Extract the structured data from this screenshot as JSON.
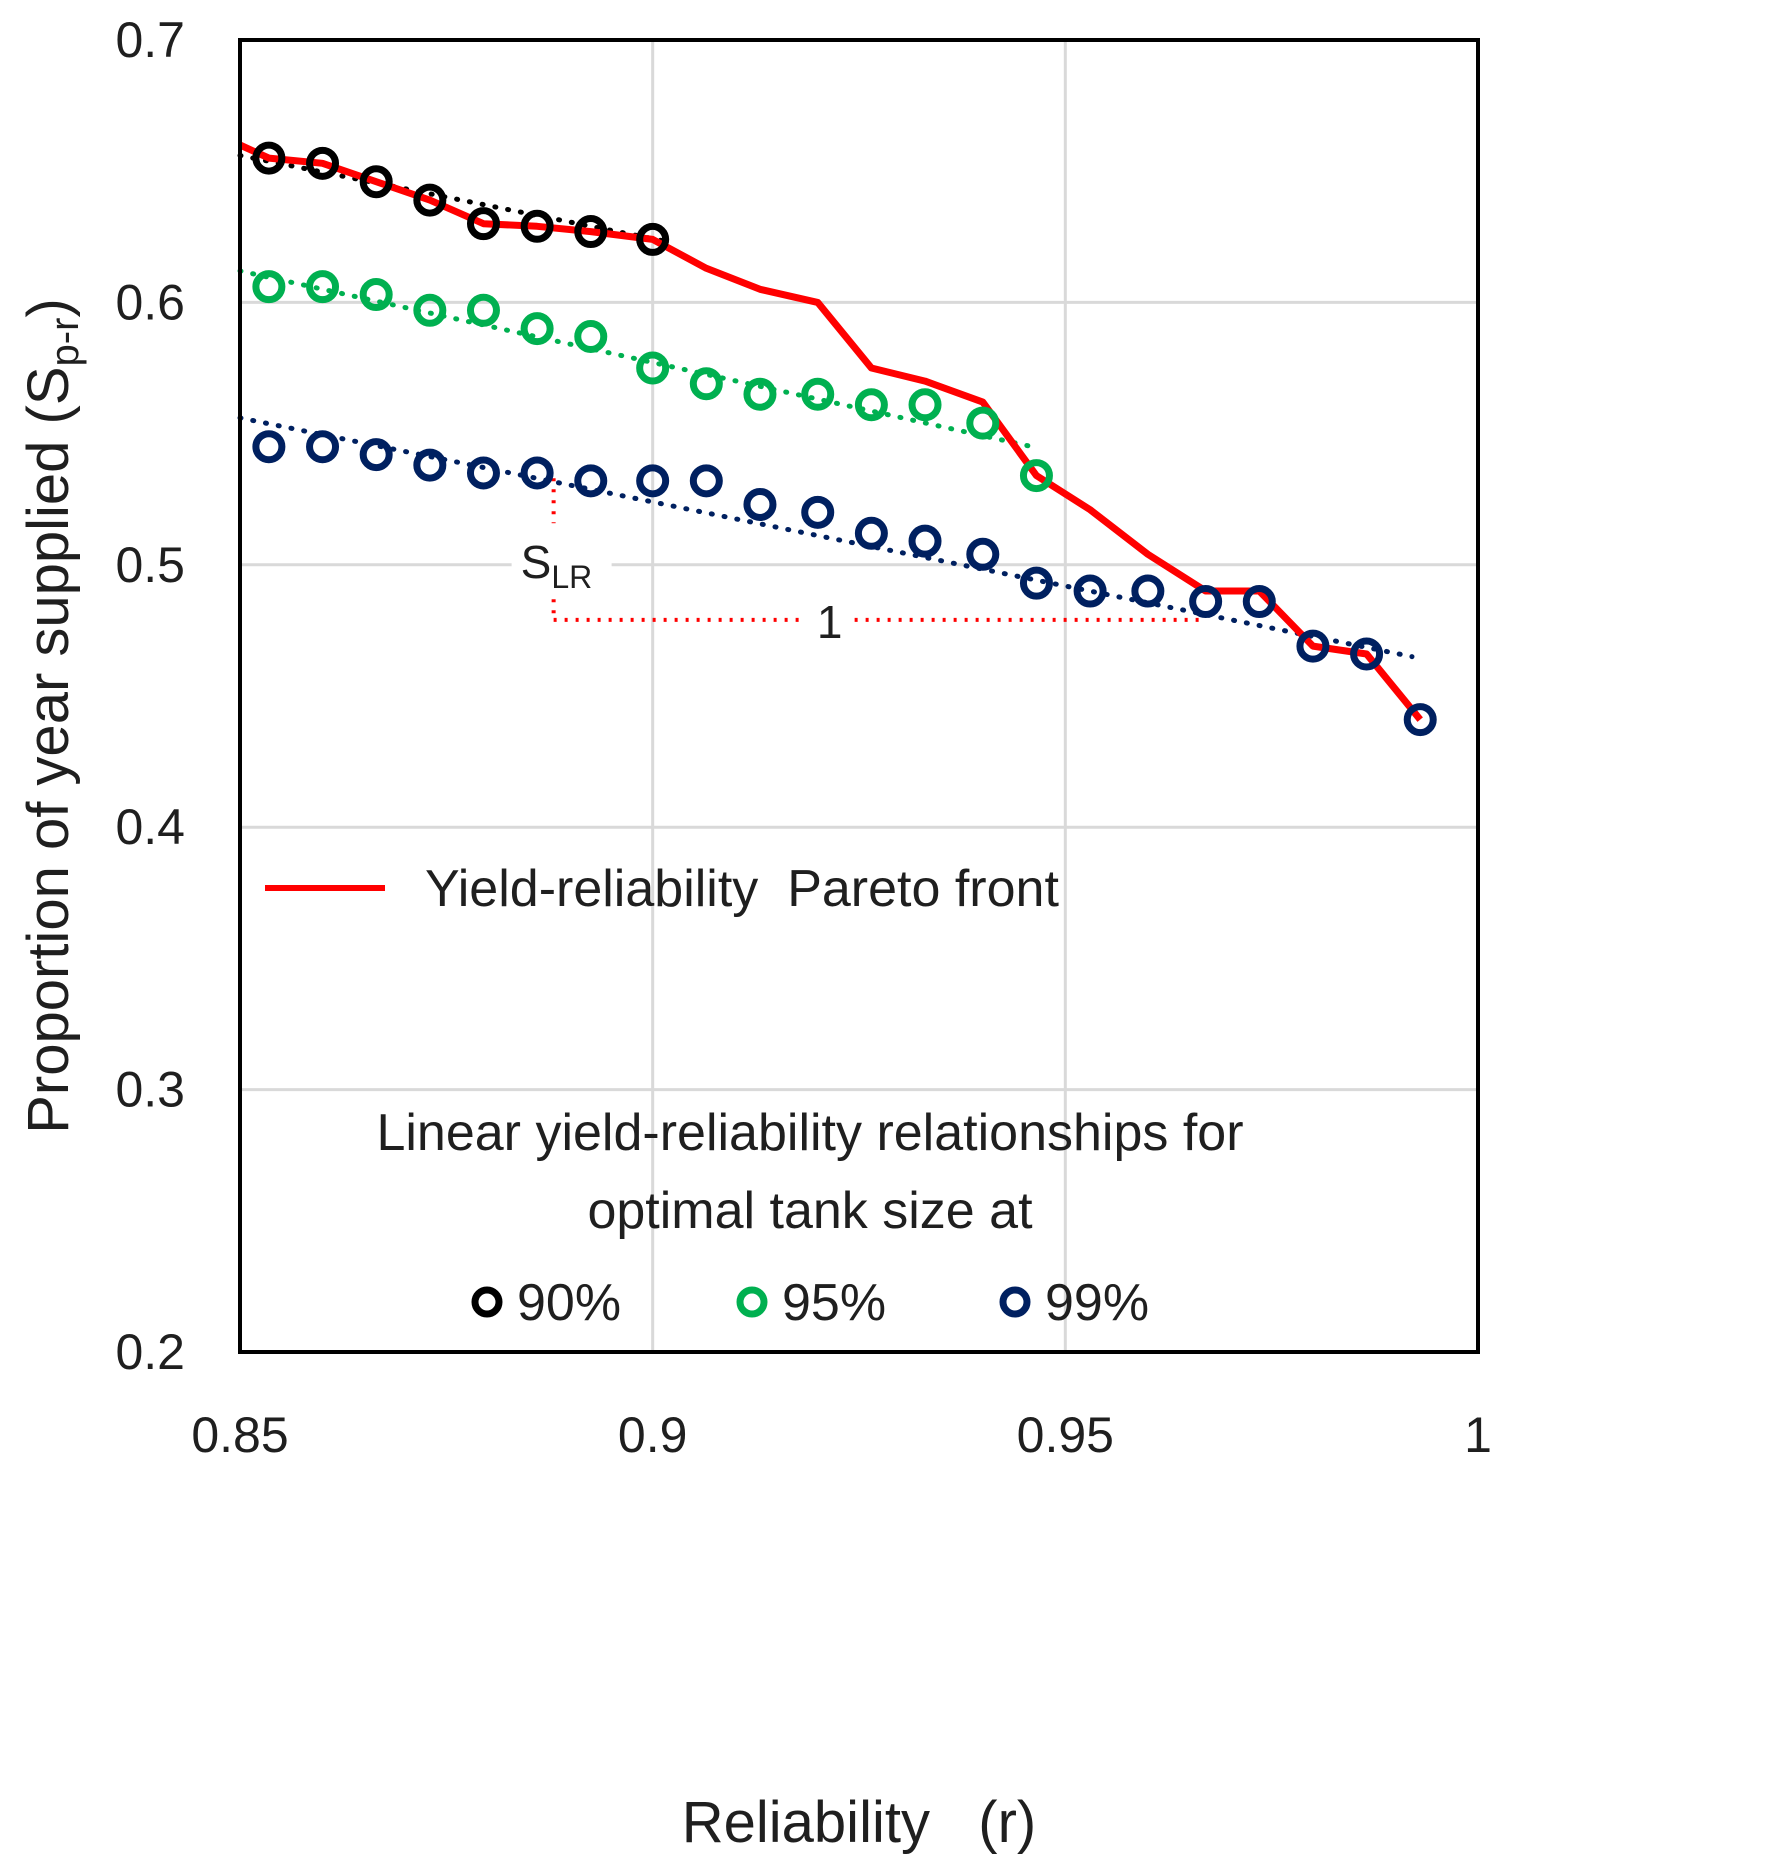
{
  "chart_data": {
    "type": "scatter",
    "xlabel": "Reliability   (r)",
    "ylabel": {
      "main": "Proportion of year supplied (S",
      "sub": "p-r",
      "close": ")"
    },
    "xlim": [
      0.85,
      1.0
    ],
    "ylim": [
      0.2,
      0.7
    ],
    "x_ticks": [
      {
        "value": 0.85,
        "label": "0.85"
      },
      {
        "value": 0.9,
        "label": "0.9"
      },
      {
        "value": 0.95,
        "label": "0.95"
      },
      {
        "value": 1.0,
        "label": "1"
      }
    ],
    "y_ticks": [
      {
        "value": 0.2,
        "label": "0.2"
      },
      {
        "value": 0.3,
        "label": "0.3"
      },
      {
        "value": 0.4,
        "label": "0.4"
      },
      {
        "value": 0.5,
        "label": "0.5"
      },
      {
        "value": 0.6,
        "label": "0.6"
      },
      {
        "value": 0.7,
        "label": "0.7"
      }
    ],
    "grid": true,
    "pareto_front": {
      "name": "Yield-reliability  Pareto front",
      "color": "#ff0000",
      "x": [
        0.85,
        0.8535,
        0.86,
        0.8665,
        0.873,
        0.8795,
        0.886,
        0.8925,
        0.9,
        0.9065,
        0.913,
        0.92,
        0.9265,
        0.933,
        0.94,
        0.9465,
        0.953,
        0.96,
        0.967,
        0.9735,
        0.98,
        0.9865,
        0.993
      ],
      "y": [
        0.66,
        0.655,
        0.653,
        0.646,
        0.639,
        0.63,
        0.629,
        0.627,
        0.624,
        0.613,
        0.605,
        0.6,
        0.575,
        0.57,
        0.562,
        0.534,
        0.521,
        0.504,
        0.49,
        0.49,
        0.469,
        0.466,
        0.441
      ]
    },
    "series": [
      {
        "name": "90%",
        "color": "#000000",
        "x": [
          0.8535,
          0.86,
          0.8665,
          0.873,
          0.8795,
          0.886,
          0.8925,
          0.9
        ],
        "y": [
          0.655,
          0.653,
          0.646,
          0.639,
          0.63,
          0.629,
          0.627,
          0.624
        ],
        "trend": {
          "x": [
            0.85,
            0.902
          ],
          "y": [
            0.656,
            0.623
          ]
        }
      },
      {
        "name": "95%",
        "color": "#00b050",
        "x": [
          0.8535,
          0.86,
          0.8665,
          0.873,
          0.8795,
          0.886,
          0.8925,
          0.9,
          0.9065,
          0.913,
          0.92,
          0.9265,
          0.933,
          0.94,
          0.9465
        ],
        "y": [
          0.606,
          0.606,
          0.603,
          0.597,
          0.597,
          0.59,
          0.587,
          0.575,
          0.569,
          0.565,
          0.565,
          0.561,
          0.561,
          0.554,
          0.534
        ],
        "trend": {
          "x": [
            0.85,
            0.946
          ],
          "y": [
            0.612,
            0.545
          ]
        }
      },
      {
        "name": "99%",
        "color": "#002060",
        "x": [
          0.8535,
          0.86,
          0.8665,
          0.873,
          0.8795,
          0.886,
          0.8925,
          0.9,
          0.9065,
          0.913,
          0.92,
          0.9265,
          0.933,
          0.94,
          0.9465,
          0.953,
          0.96,
          0.967,
          0.9735,
          0.98,
          0.9865,
          0.993
        ],
        "y": [
          0.545,
          0.545,
          0.542,
          0.538,
          0.535,
          0.535,
          0.532,
          0.532,
          0.532,
          0.523,
          0.52,
          0.512,
          0.509,
          0.504,
          0.493,
          0.49,
          0.49,
          0.486,
          0.486,
          0.469,
          0.466,
          0.441
        ],
        "trend": {
          "x": [
            0.85,
            0.992
          ],
          "y": [
            0.556,
            0.465
          ]
        }
      }
    ],
    "annotation": {
      "slope_label": "S",
      "slope_sub": "LR",
      "run_label": "1",
      "color": "#ff0000",
      "x_start": 0.888,
      "x_end": 0.967,
      "y_top": 0.533,
      "y_base": 0.479
    },
    "legend_line_label": "Yield-reliability  Pareto front",
    "legend_title_lines": [
      "Linear yield-reliability relationships for",
      "optimal tank size at"
    ],
    "legend_markers": [
      "90%",
      "95%",
      "99%"
    ],
    "grid_color": "#d9d9d9"
  }
}
